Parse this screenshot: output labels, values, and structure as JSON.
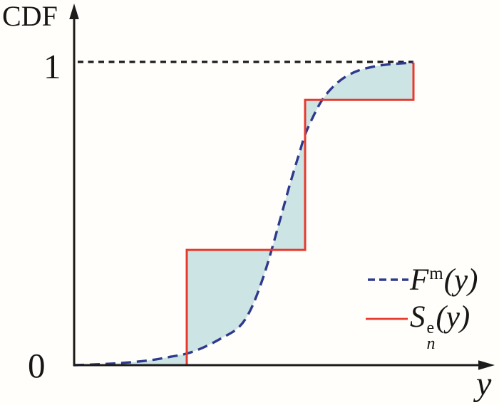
{
  "colors": {
    "background": "#fffefa",
    "axis": "#1c1c1c",
    "text": "#161616"
  },
  "chart_data": {
    "type": "line",
    "title": "",
    "ylabel": "CDF",
    "xlabel": "y",
    "ylim": [
      0,
      1.08
    ],
    "xlim": [
      0,
      1.24
    ],
    "grid": false,
    "y_tick_labels": [
      "0",
      "1"
    ],
    "y_tick_values": [
      0,
      1
    ],
    "reference_line": {
      "y": 1.0,
      "style": "dotted",
      "color": "#1c1c1c"
    },
    "legend": {
      "position": "lower right",
      "model": {
        "symbol": "F",
        "sup": "m",
        "arg": "(y)"
      },
      "empirical": {
        "symbol": "S",
        "sup": "e",
        "sub": "n",
        "arg": "(y)"
      }
    },
    "series": [
      {
        "name": "Fᵐ(y)",
        "role": "model CDF",
        "type": "line",
        "style": "dashed",
        "color": "#2e3a8c",
        "points": [
          [
            0.0,
            0.0
          ],
          [
            0.0756,
            0.003
          ],
          [
            0.1492,
            0.008
          ],
          [
            0.2227,
            0.016
          ],
          [
            0.2857,
            0.028
          ],
          [
            0.3319,
            0.038
          ],
          [
            0.3803,
            0.058
          ],
          [
            0.4328,
            0.088
          ],
          [
            0.4853,
            0.125
          ],
          [
            0.521,
            0.185
          ],
          [
            0.5546,
            0.281
          ],
          [
            0.5819,
            0.38
          ],
          [
            0.6092,
            0.489
          ],
          [
            0.6366,
            0.599
          ],
          [
            0.6639,
            0.7
          ],
          [
            0.6807,
            0.76
          ],
          [
            0.7059,
            0.823
          ],
          [
            0.7311,
            0.875
          ],
          [
            0.7605,
            0.915
          ],
          [
            0.7941,
            0.947
          ],
          [
            0.8361,
            0.971
          ],
          [
            0.8845,
            0.985
          ],
          [
            0.937,
            0.993
          ],
          [
            1.0,
            0.998
          ]
        ]
      },
      {
        "name": "Sₙᵉ(y)",
        "role": "empirical step CDF",
        "type": "step",
        "style": "solid",
        "color": "#e8392e",
        "jump_x": [
          0.3319,
          0.6807,
          1.0
        ],
        "levels": [
          0,
          0.38,
          0.875,
          0.998
        ]
      }
    ],
    "fills": {
      "color": "#cce4e4",
      "regions": [
        {
          "from": 0,
          "to": 5,
          "level": 0.0
        },
        {
          "from": 5,
          "to": 11,
          "level": 0.38
        },
        {
          "from": 11,
          "to": 15,
          "level": 0.38
        },
        {
          "from": 15,
          "to": 17,
          "level": 0.875
        },
        {
          "from": 17,
          "to": 23,
          "level": 0.875
        }
      ]
    }
  }
}
